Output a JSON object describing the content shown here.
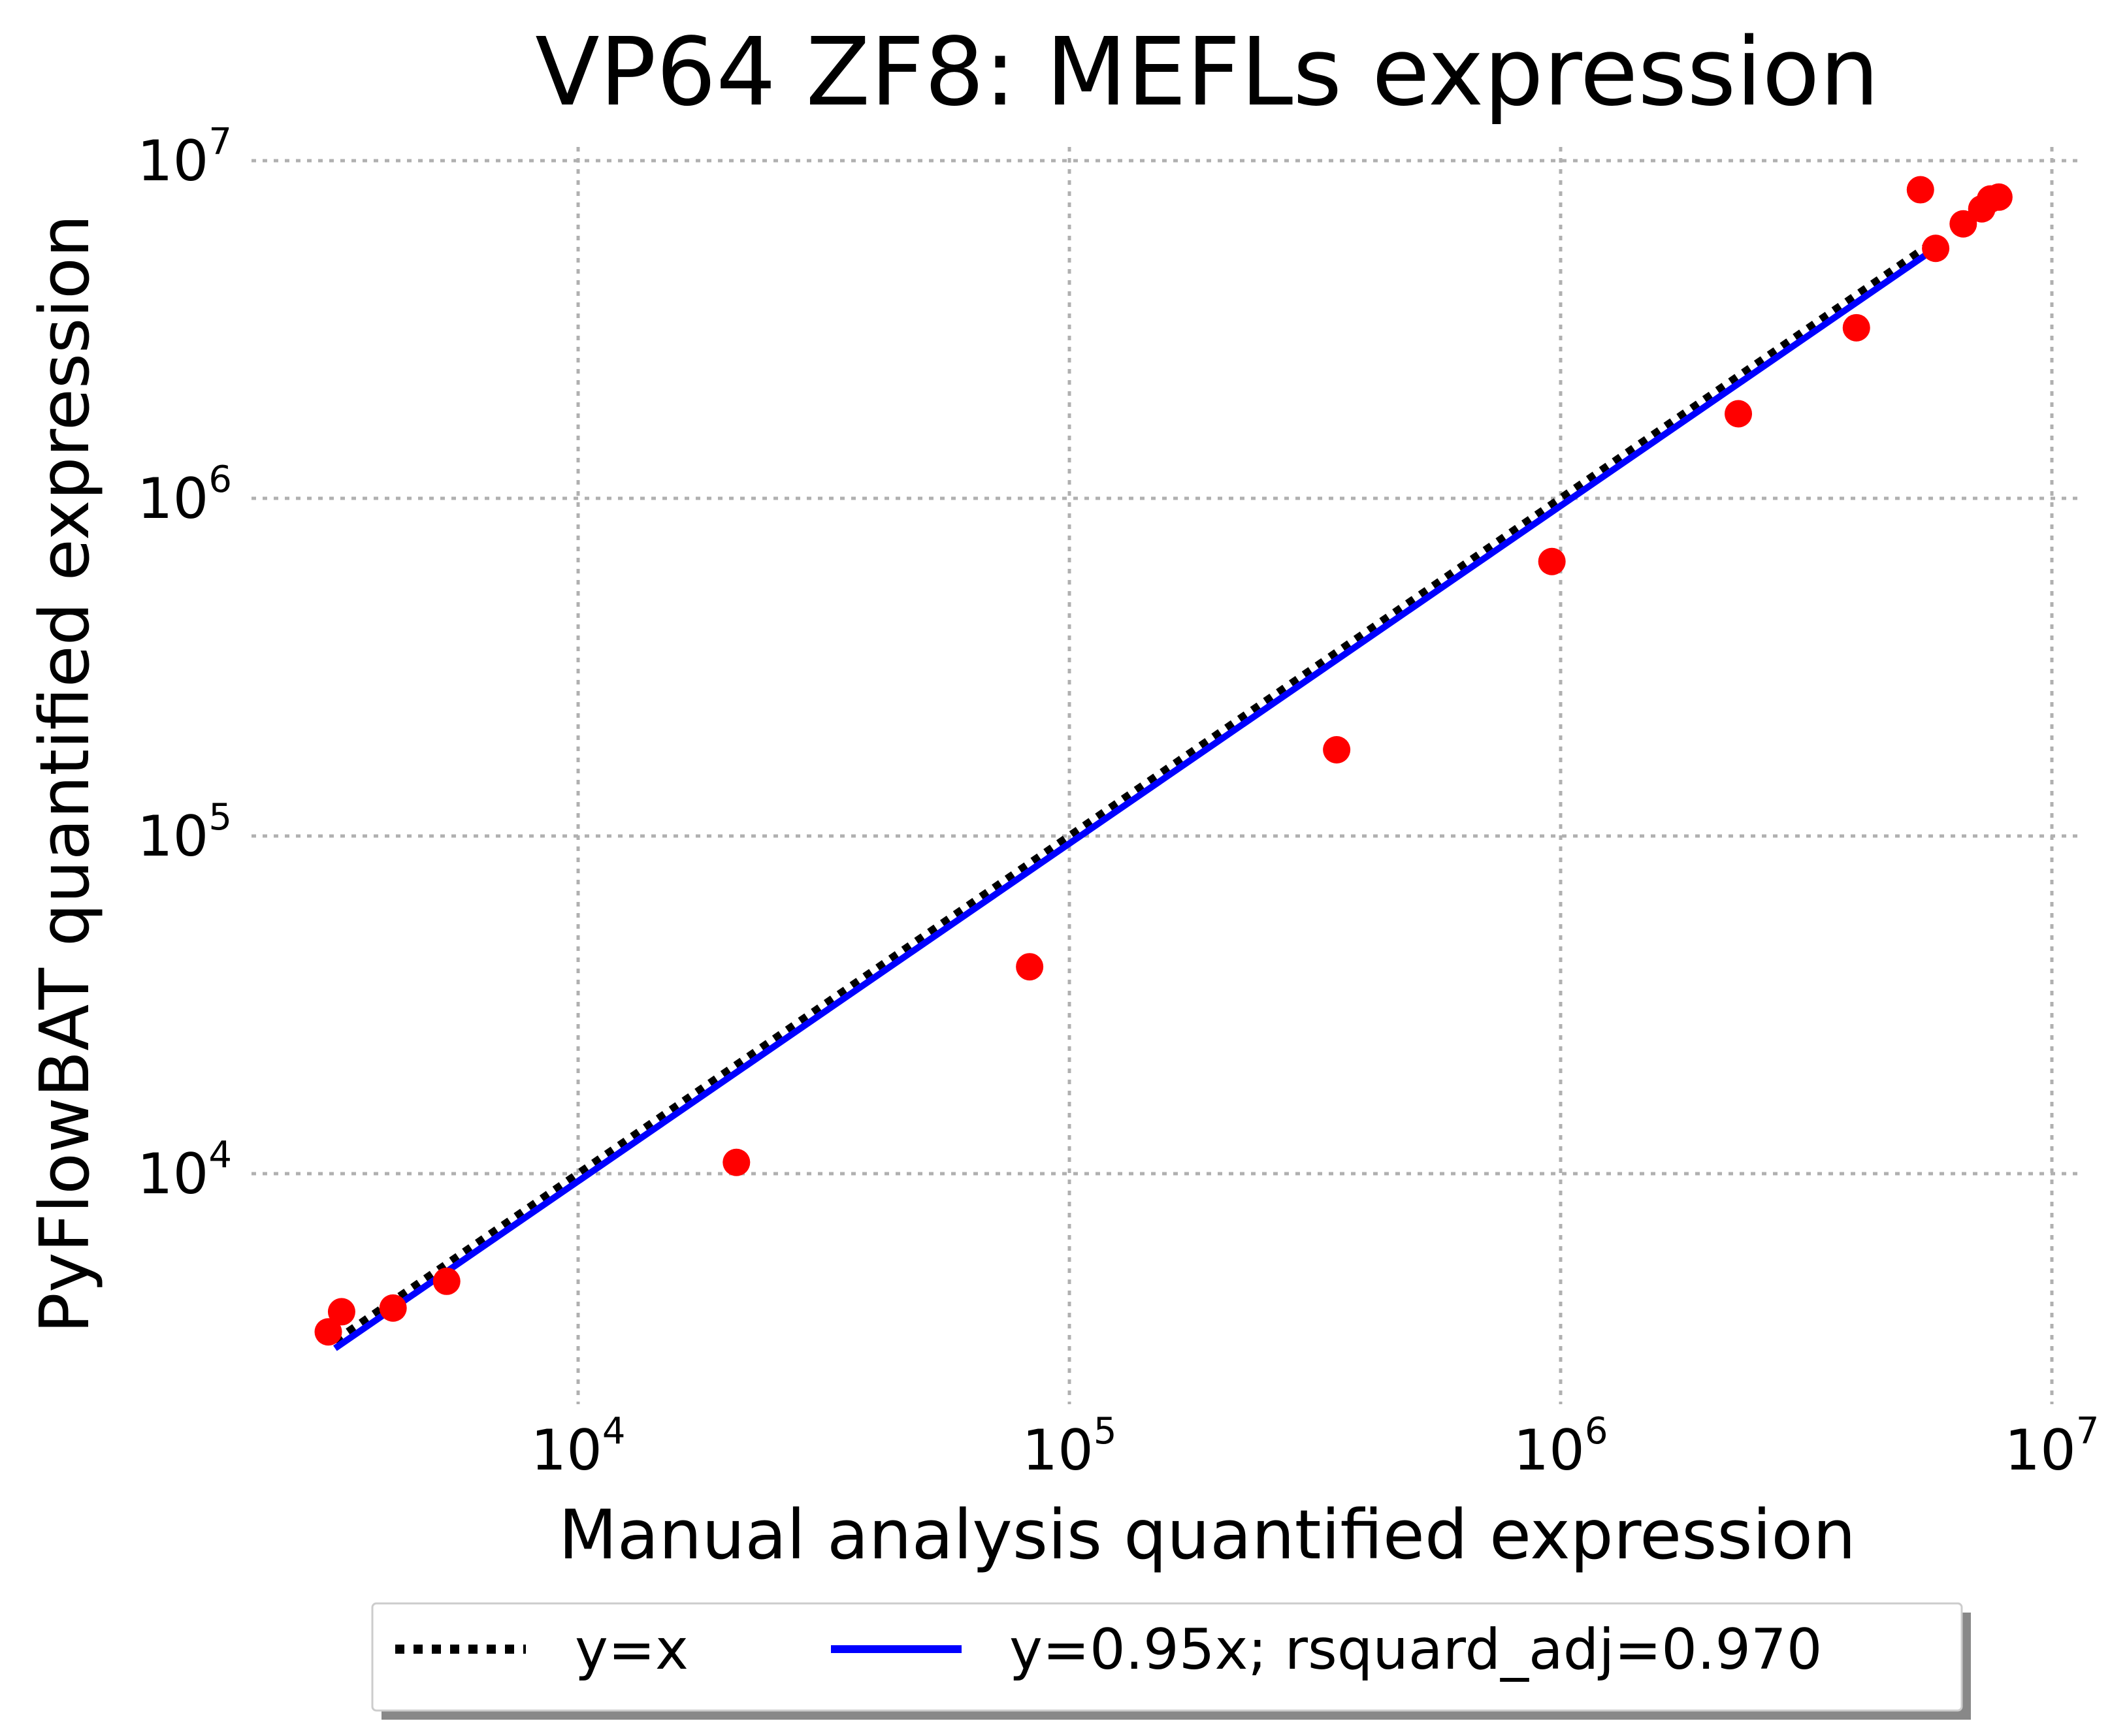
{
  "chart_data": {
    "type": "scatter",
    "title": "VP64 ZF8: MEFLs expression",
    "xlabel": "Manual analysis quantified expression",
    "ylabel": "PyFlowBAT quantified expression",
    "x_scale": "log",
    "y_scale": "log",
    "xlim": [
      1000,
      10000000
    ],
    "ylim": [
      2000,
      10000000
    ],
    "grid": true,
    "x_ticks": [
      {
        "base": "10",
        "exp": "4",
        "value": 10000
      },
      {
        "base": "10",
        "exp": "5",
        "value": 100000
      },
      {
        "base": "10",
        "exp": "6",
        "value": 1000000
      },
      {
        "base": "10",
        "exp": "7",
        "value": 10000000
      }
    ],
    "y_ticks": [
      {
        "base": "10",
        "exp": "4",
        "value": 10000
      },
      {
        "base": "10",
        "exp": "5",
        "value": 100000
      },
      {
        "base": "10",
        "exp": "6",
        "value": 1000000
      },
      {
        "base": "10",
        "exp": "7",
        "value": 10000000
      }
    ],
    "legend_position": "below",
    "series": [
      {
        "name": "y=x",
        "kind": "line",
        "style": "dotted",
        "color": "#000000",
        "slope": 1.0,
        "x_range": [
          3200,
          5600000
        ]
      },
      {
        "name": "y=0.95x; rsquard_adj=0.970",
        "kind": "line",
        "style": "solid",
        "color": "#0000ff",
        "slope": 0.95,
        "x_range": [
          3200,
          5600000
        ]
      },
      {
        "name": "data",
        "kind": "scatter",
        "color": "#ff0000",
        "points": [
          [
            3100,
            3400
          ],
          [
            3300,
            3900
          ],
          [
            4200,
            4000
          ],
          [
            5400,
            4800
          ],
          [
            21000,
            10800
          ],
          [
            83000,
            41000
          ],
          [
            350000,
            180000
          ],
          [
            960000,
            650000
          ],
          [
            2300000,
            1780000
          ],
          [
            4000000,
            3200000
          ],
          [
            5400000,
            8200000
          ],
          [
            5800000,
            5500000
          ],
          [
            6600000,
            6500000
          ],
          [
            7200000,
            7200000
          ],
          [
            7500000,
            7700000
          ],
          [
            7800000,
            7800000
          ]
        ]
      }
    ]
  }
}
